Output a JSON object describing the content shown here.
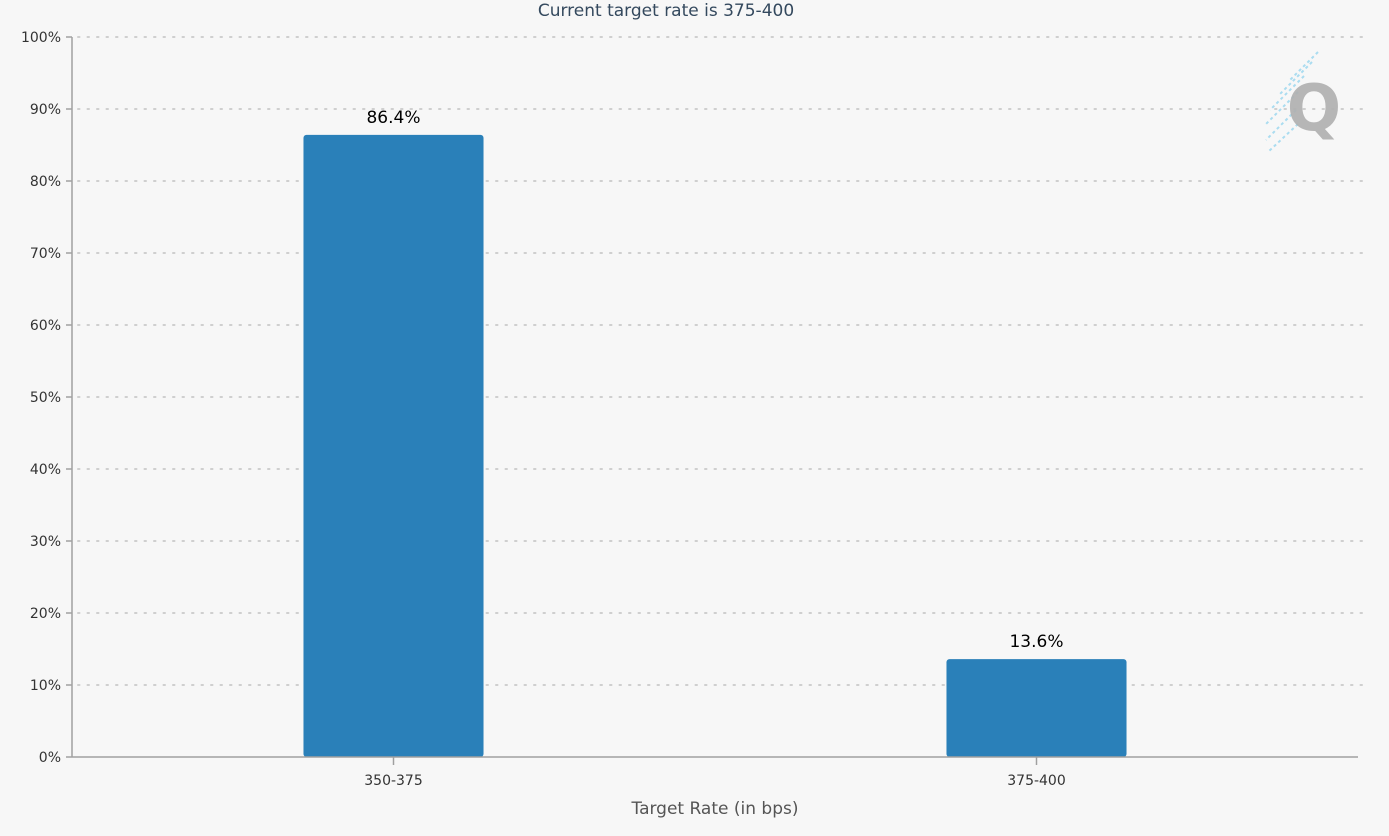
{
  "chart_data": {
    "type": "bar",
    "title": "Current target rate is 375-400",
    "xlabel": "Target Rate (in bps)",
    "ylabel": "",
    "categories": [
      "350-375",
      "375-400"
    ],
    "values": [
      86.4,
      13.6
    ],
    "data_labels": [
      "86.4%",
      "13.6%"
    ],
    "ylim": [
      0,
      100
    ],
    "yticks": [
      0,
      10,
      20,
      30,
      40,
      50,
      60,
      70,
      80,
      90,
      100
    ],
    "ytick_labels": [
      "0%",
      "10%",
      "20%",
      "30%",
      "40%",
      "50%",
      "60%",
      "70%",
      "80%",
      "90%",
      "100%"
    ],
    "grid": true,
    "legend": "none",
    "bar_color": "#2a80b9",
    "background_color": "#f7f7f7"
  },
  "watermark": {
    "icon": "q-logo-icon",
    "text": "Q",
    "color": "#b0b0b0",
    "accent_color": "#aadcf0"
  }
}
